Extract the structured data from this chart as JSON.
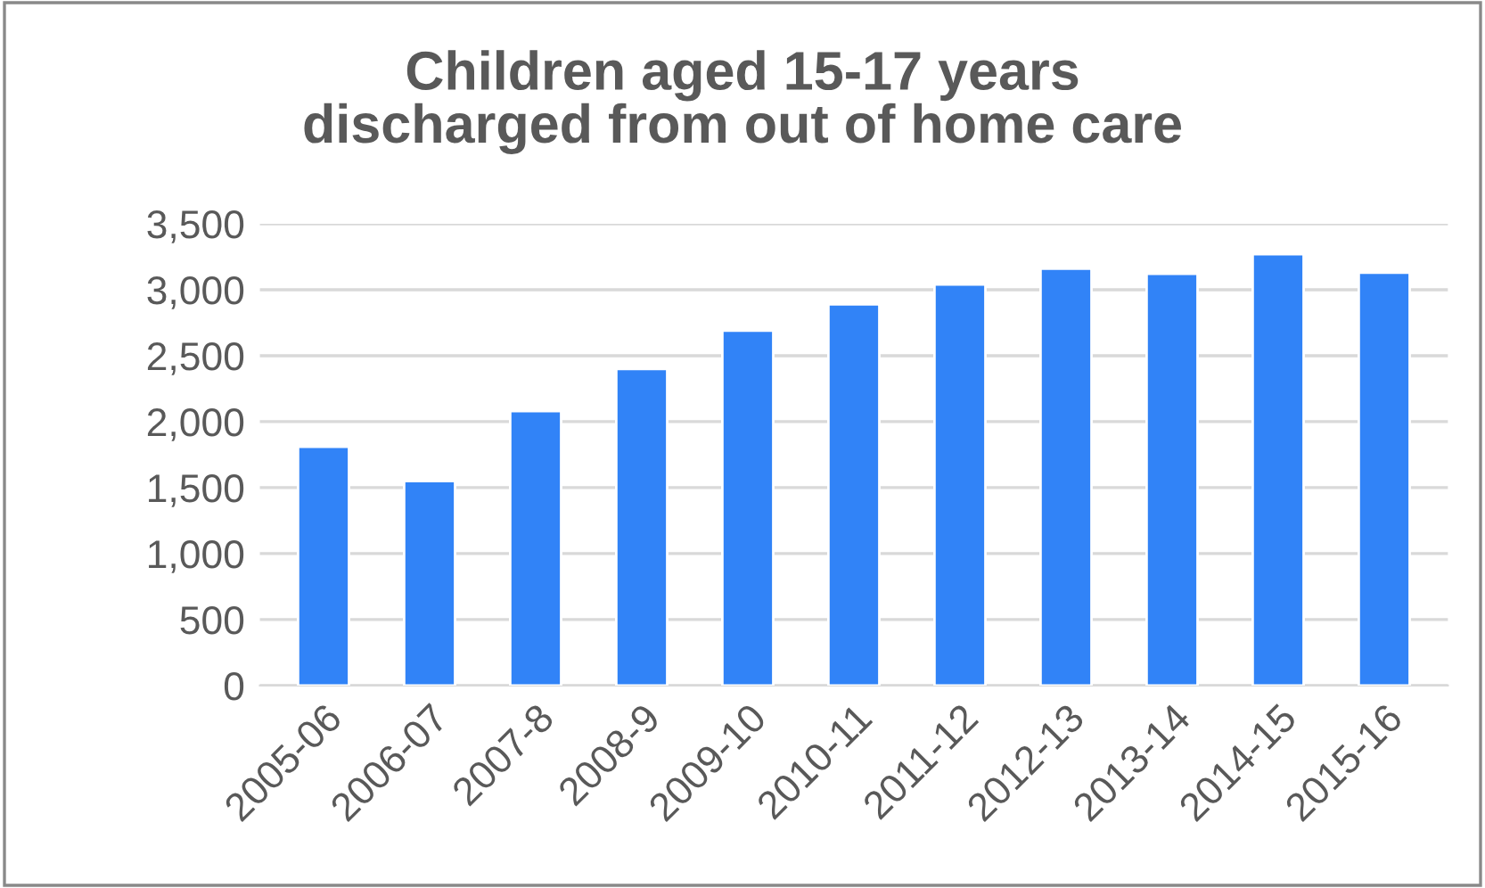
{
  "chart_data": {
    "type": "bar",
    "title": "Children aged 15-17 years\ndischarged from out of home care",
    "categories": [
      "2005-06",
      "2006-07",
      "2007-8",
      "2008-9",
      "2009-10",
      "2010-11",
      "2011-12",
      "2012-13",
      "2013-14",
      "2014-15",
      "2015-16"
    ],
    "values": [
      1810,
      1550,
      2080,
      2400,
      2690,
      2890,
      3040,
      3160,
      3120,
      3270,
      3130
    ],
    "color": "#3183f7",
    "ylim": [
      0,
      3500
    ],
    "yticks": [
      {
        "value": 0,
        "label": "0"
      },
      {
        "value": 500,
        "label": "500"
      },
      {
        "value": 1000,
        "label": "1,000"
      },
      {
        "value": 1500,
        "label": "1,500"
      },
      {
        "value": 2000,
        "label": "2,000"
      },
      {
        "value": 2500,
        "label": "2,500"
      },
      {
        "value": 3000,
        "label": "3,000"
      },
      {
        "value": 3500,
        "label": "3,500"
      }
    ],
    "grid": "y"
  }
}
